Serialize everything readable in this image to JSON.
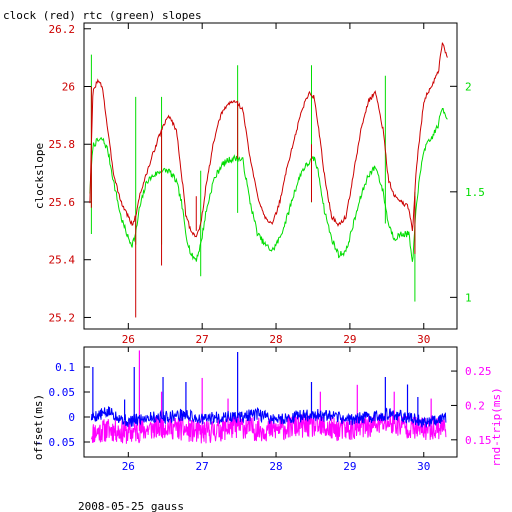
{
  "colors": {
    "clock": "#cc0000",
    "rtc": "#00dd00",
    "offset": "#0000ff",
    "rndtrip": "#ff00ff",
    "axis": "#000000"
  },
  "chart_data": [
    {
      "type": "line",
      "title": "clock (red) rtc (green) slopes",
      "xlabel": "",
      "ylabel": "clockslope",
      "xlim": [
        25.4,
        30.45
      ],
      "x_ticks": [
        26,
        27,
        28,
        29,
        30
      ],
      "ylim": [
        25.16,
        26.22
      ],
      "y_ticks": [
        25.2,
        25.4,
        25.6,
        25.8,
        26,
        26.2
      ],
      "y2lim": [
        0.85,
        2.3
      ],
      "y2_ticks": [
        1,
        1.5,
        2
      ],
      "grid": false,
      "series": [
        {
          "name": "clock",
          "axis": "left",
          "x": [
            25.48,
            25.52,
            25.58,
            25.65,
            25.72,
            25.8,
            25.9,
            26.0,
            26.05,
            26.1,
            26.15,
            26.25,
            26.35,
            26.45,
            26.55,
            26.65,
            26.72,
            26.78,
            26.85,
            26.92,
            26.98,
            27.05,
            27.15,
            27.25,
            27.35,
            27.45,
            27.55,
            27.65,
            27.75,
            27.85,
            27.95,
            28.05,
            28.15,
            28.25,
            28.35,
            28.45,
            28.52,
            28.58,
            28.65,
            28.75,
            28.85,
            28.95,
            29.05,
            29.15,
            29.25,
            29.35,
            29.45,
            29.52,
            29.6,
            29.7,
            29.8,
            29.85,
            29.9,
            30.0,
            30.1,
            30.2,
            30.25,
            30.32
          ],
          "values": [
            25.6,
            25.98,
            26.02,
            26.0,
            25.85,
            25.7,
            25.6,
            25.55,
            25.52,
            25.55,
            25.62,
            25.7,
            25.78,
            25.85,
            25.9,
            25.85,
            25.7,
            25.55,
            25.5,
            25.48,
            25.52,
            25.65,
            25.8,
            25.9,
            25.94,
            25.95,
            25.92,
            25.75,
            25.62,
            25.55,
            25.52,
            25.6,
            25.72,
            25.82,
            25.92,
            25.98,
            25.96,
            25.85,
            25.7,
            25.55,
            25.52,
            25.55,
            25.7,
            25.85,
            25.95,
            25.98,
            25.85,
            25.68,
            25.62,
            25.6,
            25.58,
            25.5,
            25.72,
            25.95,
            26.0,
            26.05,
            26.15,
            26.1
          ]
        },
        {
          "name": "rtc",
          "axis": "right",
          "x": [
            25.48,
            25.52,
            25.58,
            25.65,
            25.72,
            25.8,
            25.9,
            26.0,
            26.05,
            26.1,
            26.15,
            26.25,
            26.35,
            26.45,
            26.55,
            26.65,
            26.72,
            26.78,
            26.85,
            26.92,
            26.98,
            27.05,
            27.15,
            27.25,
            27.35,
            27.45,
            27.55,
            27.65,
            27.75,
            27.85,
            27.95,
            28.05,
            28.15,
            28.25,
            28.35,
            28.45,
            28.52,
            28.58,
            28.65,
            28.75,
            28.85,
            28.95,
            29.05,
            29.15,
            29.25,
            29.35,
            29.45,
            29.52,
            29.6,
            29.7,
            29.8,
            29.85,
            29.9,
            30.0,
            30.1,
            30.2,
            30.25,
            30.32
          ],
          "values": [
            1.5,
            1.72,
            1.74,
            1.75,
            1.7,
            1.55,
            1.38,
            1.28,
            1.25,
            1.3,
            1.42,
            1.55,
            1.58,
            1.6,
            1.6,
            1.55,
            1.45,
            1.3,
            1.2,
            1.18,
            1.25,
            1.4,
            1.55,
            1.62,
            1.65,
            1.66,
            1.65,
            1.45,
            1.3,
            1.25,
            1.22,
            1.28,
            1.38,
            1.5,
            1.6,
            1.64,
            1.66,
            1.58,
            1.42,
            1.28,
            1.2,
            1.22,
            1.35,
            1.48,
            1.58,
            1.62,
            1.5,
            1.35,
            1.28,
            1.3,
            1.3,
            1.15,
            1.45,
            1.7,
            1.75,
            1.82,
            1.9,
            1.85
          ]
        }
      ],
      "y_tick_labels": [
        "25.2",
        "25.4",
        "25.6",
        "25.8",
        "26",
        "26.2"
      ],
      "y2_tick_labels": [
        "1",
        "1.5",
        "2"
      ],
      "x_tick_labels": [
        "26",
        "27",
        "28",
        "29",
        "30"
      ]
    },
    {
      "type": "line",
      "title": "",
      "xlabel": "2008-05-25 gauss",
      "ylabel": "offset(ms)",
      "y2label": "rnd-trip(ms)",
      "xlim": [
        25.4,
        30.45
      ],
      "x_ticks": [
        26,
        27,
        28,
        29,
        30
      ],
      "ylim": [
        -0.08,
        0.14
      ],
      "y_ticks": [
        -0.05,
        0,
        0.05,
        0.1
      ],
      "y2lim": [
        0.125,
        0.285
      ],
      "y2_ticks": [
        0.15,
        0.2,
        0.25
      ],
      "grid": false,
      "series": [
        {
          "name": "offset",
          "axis": "left",
          "x": [
            25.5,
            25.75,
            26.0,
            26.25,
            26.5,
            26.75,
            27.0,
            27.25,
            27.5,
            27.75,
            28.0,
            28.25,
            28.5,
            28.75,
            29.0,
            29.25,
            29.5,
            29.75,
            30.0,
            30.3
          ],
          "values": [
            0.0,
            0.01,
            -0.01,
            0.0,
            0.0,
            0.005,
            -0.005,
            0.0,
            0.0,
            0.005,
            -0.005,
            0.0,
            0.005,
            0.0,
            -0.005,
            0.0,
            0.005,
            0.0,
            -0.01,
            0.0
          ],
          "spikes": [
            [
              25.52,
              0.1
            ],
            [
              25.95,
              0.035
            ],
            [
              26.08,
              0.1
            ],
            [
              26.47,
              0.08
            ],
            [
              26.78,
              0.07
            ],
            [
              27.48,
              0.13
            ],
            [
              28.48,
              0.07
            ],
            [
              29.48,
              0.08
            ],
            [
              29.78,
              0.065
            ],
            [
              29.92,
              0.04
            ]
          ]
        },
        {
          "name": "rnd-trip",
          "axis": "right",
          "x": [
            25.5,
            25.75,
            26.0,
            26.25,
            26.5,
            26.75,
            27.0,
            27.25,
            27.5,
            27.75,
            28.0,
            28.25,
            28.5,
            28.75,
            29.0,
            29.25,
            29.5,
            29.75,
            30.0,
            30.3
          ],
          "values": [
            0.16,
            0.165,
            0.16,
            0.165,
            0.17,
            0.165,
            0.16,
            0.165,
            0.17,
            0.165,
            0.165,
            0.17,
            0.17,
            0.165,
            0.165,
            0.17,
            0.175,
            0.17,
            0.165,
            0.17
          ],
          "spikes": [
            [
              26.15,
              0.28
            ],
            [
              26.45,
              0.22
            ],
            [
              27.0,
              0.24
            ],
            [
              27.35,
              0.21
            ],
            [
              28.6,
              0.22
            ],
            [
              29.1,
              0.23
            ],
            [
              29.6,
              0.22
            ],
            [
              30.1,
              0.21
            ]
          ]
        }
      ],
      "y_tick_labels": [
        "- 0.05",
        "0",
        "0.05",
        "0.1"
      ],
      "y2_tick_labels": [
        "0.15",
        "0.2",
        "0.25"
      ],
      "x_tick_labels": [
        "26",
        "27",
        "28",
        "29",
        "30"
      ]
    }
  ]
}
